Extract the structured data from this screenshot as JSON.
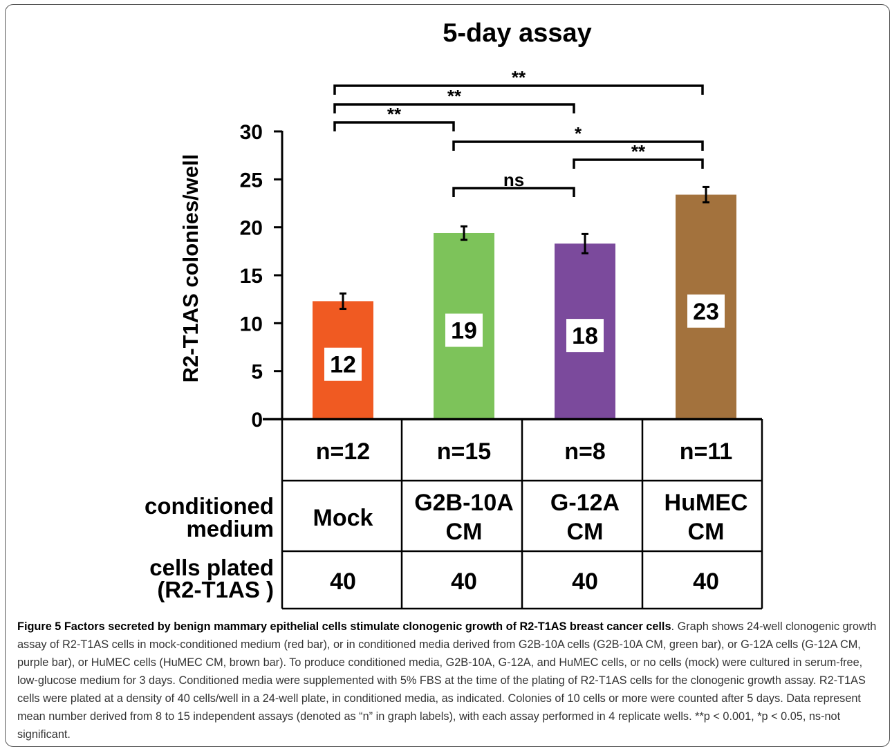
{
  "chart_data": {
    "type": "bar",
    "title": "5-day assay",
    "ylabel": "R2-T1AS colonies/well",
    "xlabel": "",
    "ylim": [
      0,
      30
    ],
    "yticks": [
      0,
      5,
      10,
      15,
      20,
      25,
      30
    ],
    "grid": false,
    "categories": [
      "Mock",
      "G2B-10A CM",
      "G-12A CM",
      "HuMEC CM"
    ],
    "values": [
      12.3,
      19.4,
      18.3,
      23.4
    ],
    "errors": [
      0.8,
      0.7,
      1.0,
      0.8
    ],
    "data_labels": [
      "12",
      "19",
      "18",
      "23"
    ],
    "colors": [
      "#f05a22",
      "#7dc35a",
      "#7b4a9c",
      "#a3723d"
    ],
    "significance": [
      {
        "from": 0,
        "to": 3,
        "label": "**"
      },
      {
        "from": 0,
        "to": 2,
        "label": "**"
      },
      {
        "from": 0,
        "to": 1,
        "label": "**"
      },
      {
        "from": 1,
        "to": 3,
        "label": "*"
      },
      {
        "from": 2,
        "to": 3,
        "label": "**"
      },
      {
        "from": 1,
        "to": 2,
        "label": "ns"
      }
    ]
  },
  "table": {
    "n_row": [
      "n=12",
      "n=15",
      "n=8",
      "n=11"
    ],
    "medium_header": [
      "conditioned",
      "medium"
    ],
    "medium_row": [
      [
        "Mock"
      ],
      [
        "G2B-10A",
        "CM"
      ],
      [
        "G-12A",
        "CM"
      ],
      [
        "HuMEC",
        "CM"
      ]
    ],
    "cells_header": [
      "cells plated",
      "(R2-T1AS )"
    ],
    "cells_row": [
      "40",
      "40",
      "40",
      "40"
    ]
  },
  "caption": {
    "label": "Figure 5 Factors secreted by benign mammary epithelial cells stimulate clonogenic growth of R2-T1AS breast cancer cells",
    "text": ". Graph shows 24-well clonogenic growth assay of R2-T1AS cells in mock-conditioned medium (red bar), or in conditioned media derived from G2B-10A cells (G2B-10A CM, green bar), or G-12A cells (G-12A CM, purple bar), or HuMEC cells (HuMEC CM, brown bar). To produce conditioned media, G2B-10A, G-12A, and HuMEC cells, or no cells (mock) were cultured in serum-free, low-glucose medium for 3 days. Conditioned media were supplemented with 5% FBS at the time of the plating of R2-T1AS cells for the clonogenic growth assay. R2-T1AS cells were plated at a density of 40 cells/well in a 24-well plate, in conditioned media, as indicated. Colonies of 10 cells or more were counted after 5 days. Data represent mean number derived from 8 to 15 independent assays (denoted as “n” in graph labels), with each assay performed in 4 replicate wells. **p < 0.001, *p < 0.05, ns-not significant."
  }
}
